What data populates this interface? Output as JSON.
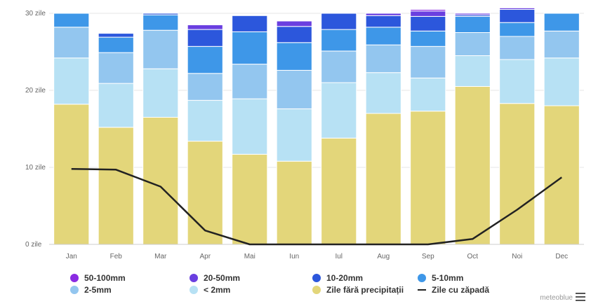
{
  "chart_data": {
    "type": "bar",
    "stacked": true,
    "categories": [
      "Jan",
      "Feb",
      "Mar",
      "Apr",
      "Mai",
      "Iun",
      "Iul",
      "Aug",
      "Sep",
      "Oct",
      "Noi",
      "Dec"
    ],
    "y_ticks": [
      "0 zile",
      "10 zile",
      "20 zile",
      "30 zile"
    ],
    "ylim": [
      0,
      30
    ],
    "grid": true,
    "legend_position": "bottom",
    "series": [
      {
        "name": "Zile fără precipitații",
        "color": "#e3d67a",
        "values": [
          18.2,
          15.2,
          16.5,
          13.4,
          11.7,
          10.8,
          13.8,
          17.0,
          17.3,
          20.5,
          18.3,
          18.0
        ]
      },
      {
        "name": "< 2mm",
        "color": "#b7e1f4",
        "values": [
          6.0,
          5.7,
          6.3,
          5.3,
          7.2,
          6.8,
          7.2,
          5.3,
          4.3,
          4.0,
          5.7,
          6.2
        ]
      },
      {
        "name": "2-5mm",
        "color": "#93c6ef",
        "values": [
          4.0,
          4.0,
          5.0,
          3.5,
          4.5,
          5.0,
          4.1,
          3.6,
          4.1,
          3.0,
          3.0,
          3.5
        ]
      },
      {
        "name": "5-10mm",
        "color": "#3e97e8",
        "values": [
          1.8,
          2.0,
          2.0,
          3.5,
          4.2,
          3.6,
          2.8,
          2.3,
          2.0,
          2.1,
          1.8,
          2.3
        ]
      },
      {
        "name": "10-20mm",
        "color": "#2c57dc",
        "values": [
          0.0,
          0.5,
          0.2,
          2.2,
          2.1,
          2.1,
          2.1,
          1.5,
          1.9,
          0.2,
          1.7,
          0.0
        ]
      },
      {
        "name": "20-50mm",
        "color": "#6a3fe0",
        "values": [
          0.0,
          0.0,
          0.0,
          0.6,
          0.0,
          0.7,
          0.0,
          0.3,
          0.7,
          0.2,
          0.2,
          0.0
        ]
      },
      {
        "name": "50-100mm",
        "color": "#8a2be2",
        "values": [
          0.0,
          0.0,
          0.0,
          0.0,
          0.0,
          0.0,
          0.0,
          0.0,
          0.2,
          0.0,
          0.0,
          0.0
        ]
      }
    ],
    "line_series": {
      "name": "Zile cu zăpadă",
      "color": "#222222",
      "values": [
        9.8,
        9.7,
        7.5,
        1.8,
        0.0,
        0.0,
        0.0,
        0.0,
        0.0,
        0.7,
        4.5,
        8.7
      ]
    },
    "legend": [
      {
        "label": "50-100mm",
        "color": "#8a2be2",
        "shape": "dot"
      },
      {
        "label": "20-50mm",
        "color": "#6a3fe0",
        "shape": "dot"
      },
      {
        "label": "10-20mm",
        "color": "#2c57dc",
        "shape": "dot"
      },
      {
        "label": "5-10mm",
        "color": "#3e97e8",
        "shape": "dot"
      },
      {
        "label": "2-5mm",
        "color": "#93c6ef",
        "shape": "dot"
      },
      {
        "label": "< 2mm",
        "color": "#b7e1f4",
        "shape": "dot"
      },
      {
        "label": "Zile fără precipitații",
        "color": "#e3d67a",
        "shape": "dot"
      },
      {
        "label": "Zile cu zăpadă",
        "color": "#222222",
        "shape": "line"
      }
    ]
  },
  "credit": "meteoblue",
  "menu_icon": "hamburger-menu-icon"
}
